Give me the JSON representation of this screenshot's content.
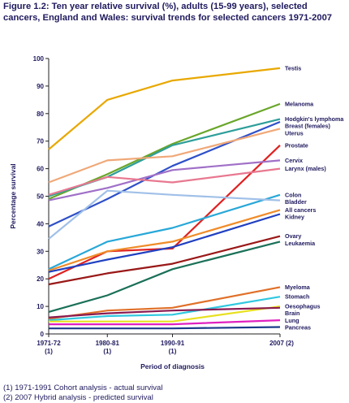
{
  "title": "Figure 1.2: Ten year relative survival (%), adults (15-99 years), selected cancers, England and Wales: survival trends for selected cancers 1971-2007",
  "footnotes": [
    "(1) 1971-1991 Cohort analysis - actual survival",
    "(2) 2007 Hybrid analysis - predicted survival"
  ],
  "chart_data": {
    "type": "line",
    "xlabel": "Period of diagnosis",
    "ylabel": "Percentage survival",
    "ylim": [
      0,
      100
    ],
    "yticks": [
      0,
      10,
      20,
      30,
      40,
      50,
      60,
      70,
      80,
      90,
      100
    ],
    "categories": [
      {
        "label": "1971-72",
        "note": "(1)",
        "year": 1971.5
      },
      {
        "label": "1980-81",
        "note": "(1)",
        "year": 1980.5
      },
      {
        "label": "1990-91",
        "note": "(1)",
        "year": 1990.5
      },
      {
        "label": "2007",
        "note": "(2)",
        "year": 2007
      }
    ],
    "legend": "direct-labels-right",
    "grid": false,
    "series": [
      {
        "name": "Testis",
        "color": "#e8a800",
        "points": [
          [
            1971.5,
            67
          ],
          [
            1980.5,
            85
          ],
          [
            1990.5,
            92
          ],
          [
            2007,
            96.5
          ]
        ]
      },
      {
        "name": "Melanoma",
        "color": "#6aa62a",
        "points": [
          [
            1971.5,
            49
          ],
          [
            1980.5,
            58
          ],
          [
            1990.5,
            69
          ],
          [
            2007,
            83.5
          ]
        ]
      },
      {
        "name": "Hodgkin's lymphoma",
        "color": "#2e9e9a",
        "points": [
          [
            1971.5,
            50
          ],
          [
            1980.5,
            57
          ],
          [
            1990.5,
            68.5
          ],
          [
            2007,
            78
          ]
        ]
      },
      {
        "name": "Breast (females)",
        "color": "#2e50c8",
        "points": [
          [
            1971.5,
            39
          ],
          [
            1980.5,
            49
          ],
          [
            1990.5,
            61
          ],
          [
            2007,
            77
          ]
        ]
      },
      {
        "name": "Uterus",
        "color": "#f0a878",
        "points": [
          [
            1971.5,
            55
          ],
          [
            1980.5,
            63
          ],
          [
            1990.5,
            64.5
          ],
          [
            2007,
            74.5
          ]
        ]
      },
      {
        "name": "Prostate",
        "color": "#e02020",
        "points": [
          [
            1971.5,
            20
          ],
          [
            1980.5,
            30
          ],
          [
            1990.5,
            31
          ],
          [
            2007,
            68.5
          ]
        ]
      },
      {
        "name": "Cervix",
        "color": "#a070c8",
        "points": [
          [
            1971.5,
            48.5
          ],
          [
            1980.5,
            53
          ],
          [
            1990.5,
            59.5
          ],
          [
            2007,
            63
          ]
        ]
      },
      {
        "name": "Larynx (males)",
        "color": "#e87890",
        "points": [
          [
            1971.5,
            50.5
          ],
          [
            1980.5,
            57
          ],
          [
            1990.5,
            55
          ],
          [
            2007,
            60
          ]
        ]
      },
      {
        "name": "Colon",
        "color": "#28a8d8",
        "points": [
          [
            1971.5,
            23.5
          ],
          [
            1980.5,
            33.5
          ],
          [
            1990.5,
            38.5
          ],
          [
            2007,
            50.5
          ]
        ]
      },
      {
        "name": "Bladder",
        "color": "#a0c0e8",
        "points": [
          [
            1971.5,
            34.5
          ],
          [
            1980.5,
            52
          ],
          [
            1990.5,
            50.5
          ],
          [
            2007,
            48.5
          ]
        ]
      },
      {
        "name": "All cancers",
        "color": "#f08c28",
        "points": [
          [
            1971.5,
            23
          ],
          [
            1980.5,
            30
          ],
          [
            1990.5,
            33.5
          ],
          [
            2007,
            45
          ]
        ]
      },
      {
        "name": "Kidney",
        "color": "#2040c0",
        "points": [
          [
            1971.5,
            22.5
          ],
          [
            1980.5,
            27
          ],
          [
            1990.5,
            31.5
          ],
          [
            2007,
            43.5
          ]
        ]
      },
      {
        "name": "Ovary",
        "color": "#9a1818",
        "points": [
          [
            1971.5,
            18
          ],
          [
            1980.5,
            22
          ],
          [
            1990.5,
            25.5
          ],
          [
            2007,
            35.5
          ]
        ]
      },
      {
        "name": "Leukaemia",
        "color": "#1a7058",
        "points": [
          [
            1971.5,
            8
          ],
          [
            1980.5,
            14
          ],
          [
            1990.5,
            23.5
          ],
          [
            2007,
            33.5
          ]
        ]
      },
      {
        "name": "Myeloma",
        "color": "#e07028",
        "points": [
          [
            1971.5,
            5.5
          ],
          [
            1980.5,
            8.5
          ],
          [
            1990.5,
            9.5
          ],
          [
            2007,
            17
          ]
        ]
      },
      {
        "name": "Stomach",
        "color": "#30c8e0",
        "points": [
          [
            1971.5,
            5
          ],
          [
            1980.5,
            6.5
          ],
          [
            1990.5,
            7
          ],
          [
            2007,
            13.5
          ]
        ]
      },
      {
        "name": "Oesophagus",
        "color": "#e8e020",
        "points": [
          [
            1971.5,
            4.5
          ],
          [
            1980.5,
            4.5
          ],
          [
            1990.5,
            4.5
          ],
          [
            2007,
            10
          ]
        ]
      },
      {
        "name": "Brain",
        "color": "#8a1a50",
        "points": [
          [
            1971.5,
            6
          ],
          [
            1980.5,
            7.5
          ],
          [
            1990.5,
            8.5
          ],
          [
            2007,
            9.5
          ]
        ]
      },
      {
        "name": "Lung",
        "color": "#e020c0",
        "points": [
          [
            1971.5,
            3.5
          ],
          [
            1980.5,
            3.5
          ],
          [
            1990.5,
            3.5
          ],
          [
            2007,
            5
          ]
        ]
      },
      {
        "name": "Pancreas",
        "color": "#1a3a8a",
        "points": [
          [
            1971.5,
            2
          ],
          [
            1980.5,
            2
          ],
          [
            1990.5,
            2
          ],
          [
            2007,
            2.5
          ]
        ]
      }
    ]
  }
}
